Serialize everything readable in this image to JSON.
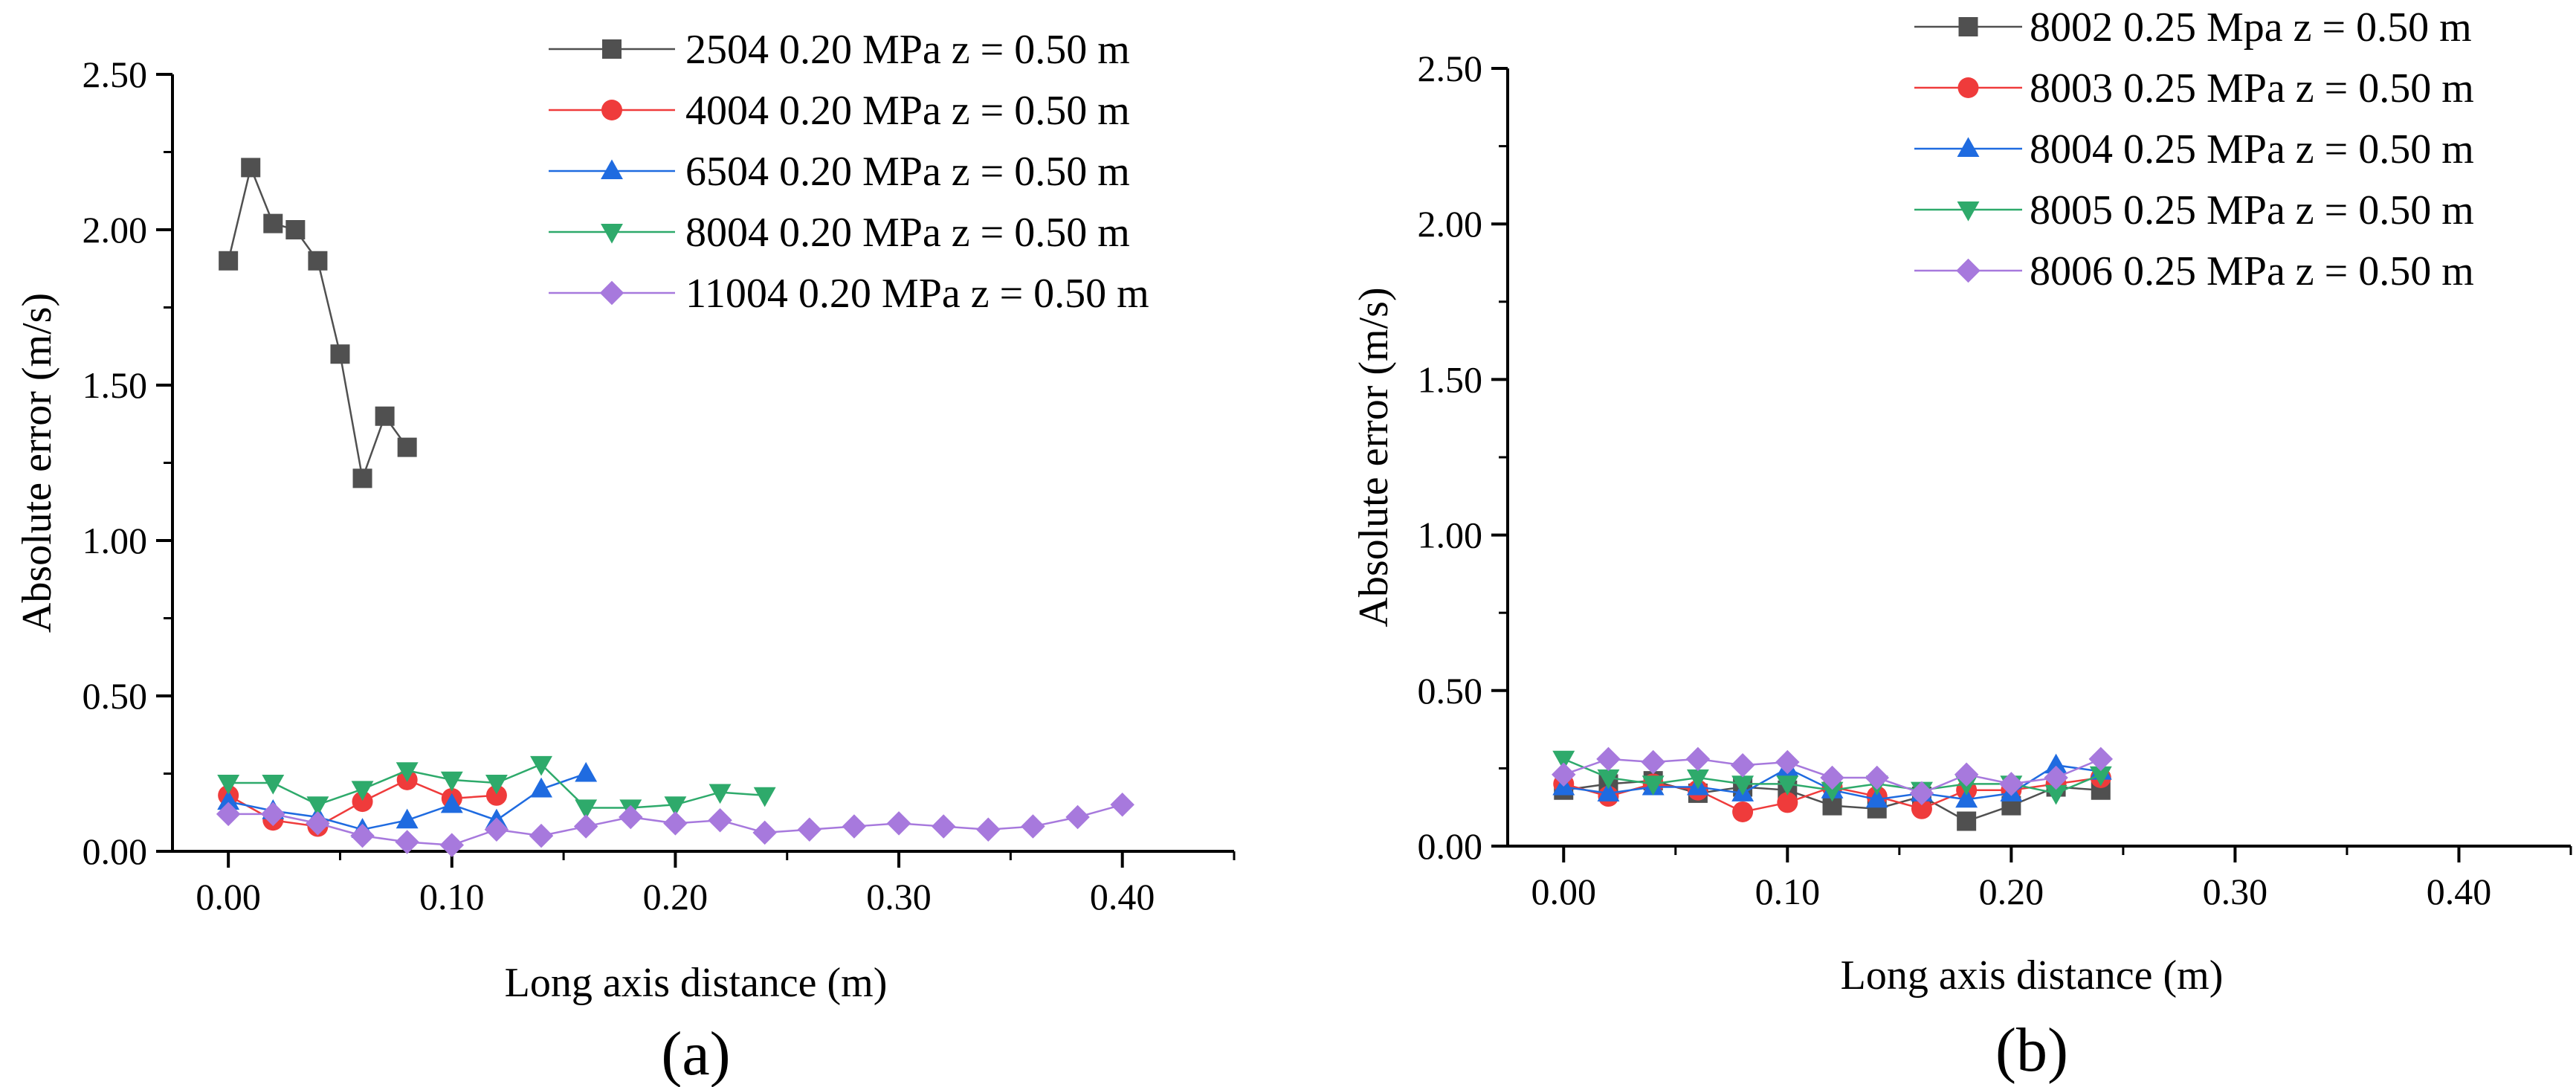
{
  "chart_data": [
    {
      "type": "line",
      "panel_label": "(a)",
      "xlabel": "Long axis distance (m)",
      "ylabel": "Absolute error (m/s)",
      "xlim": [
        -0.025,
        0.45
      ],
      "ylim": [
        0,
        2.5
      ],
      "xticks": [
        "0.00",
        "0.10",
        "0.20",
        "0.30",
        "0.40"
      ],
      "yticks": [
        "0.00",
        "0.50",
        "1.00",
        "1.50",
        "2.00",
        "2.50"
      ],
      "legend_position": "top-right",
      "series": [
        {
          "name": "2504 0.20 MPa z = 0.50 m",
          "color": "#505050",
          "marker": "square",
          "x": [
            0.0,
            0.01,
            0.02,
            0.03,
            0.04,
            0.05,
            0.06,
            0.07,
            0.08
          ],
          "y": [
            1.9,
            2.2,
            2.02,
            2.0,
            1.9,
            1.6,
            1.2,
            1.4,
            1.3
          ]
        },
        {
          "name": "4004 0.20 MPa z = 0.50 m",
          "color": "#ef3b3b",
          "marker": "circle",
          "x": [
            0.0,
            0.02,
            0.04,
            0.06,
            0.08,
            0.1,
            0.12
          ],
          "y": [
            0.18,
            0.1,
            0.08,
            0.16,
            0.23,
            0.17,
            0.18
          ]
        },
        {
          "name": "6504 0.20 MPa z = 0.50 m",
          "color": "#1f6be0",
          "marker": "triangle-up",
          "x": [
            0.0,
            0.02,
            0.04,
            0.06,
            0.08,
            0.1,
            0.12,
            0.14,
            0.16
          ],
          "y": [
            0.16,
            0.13,
            0.11,
            0.07,
            0.1,
            0.15,
            0.1,
            0.2,
            0.25
          ]
        },
        {
          "name": "8004 0.20 MPa z = 0.50 m",
          "color": "#2eaa6b",
          "marker": "triangle-down",
          "x": [
            0.0,
            0.02,
            0.04,
            0.06,
            0.08,
            0.1,
            0.12,
            0.14,
            0.16,
            0.18,
            0.2,
            0.22,
            0.24
          ],
          "y": [
            0.22,
            0.22,
            0.15,
            0.2,
            0.26,
            0.23,
            0.22,
            0.28,
            0.14,
            0.14,
            0.15,
            0.19,
            0.18
          ]
        },
        {
          "name": "11004 0.20 MPa z = 0.50 m",
          "color": "#a779dd",
          "marker": "diamond",
          "x": [
            0.0,
            0.02,
            0.04,
            0.06,
            0.08,
            0.1,
            0.12,
            0.14,
            0.16,
            0.18,
            0.2,
            0.22,
            0.24,
            0.26,
            0.28,
            0.3,
            0.32,
            0.34,
            0.36,
            0.38,
            0.4
          ],
          "y": [
            0.12,
            0.12,
            0.09,
            0.05,
            0.03,
            0.02,
            0.07,
            0.05,
            0.08,
            0.11,
            0.09,
            0.1,
            0.06,
            0.07,
            0.08,
            0.09,
            0.08,
            0.07,
            0.08,
            0.11,
            0.15
          ]
        }
      ]
    },
    {
      "type": "line",
      "panel_label": "(b)",
      "xlabel": "Long axis distance (m)",
      "ylabel": "Absolute error (m/s)",
      "xlim": [
        -0.025,
        0.45
      ],
      "ylim": [
        0,
        2.5
      ],
      "xticks": [
        "0.00",
        "0.10",
        "0.20",
        "0.30",
        "0.40"
      ],
      "yticks": [
        "0.00",
        "0.50",
        "1.00",
        "1.50",
        "2.00",
        "2.50"
      ],
      "legend_position": "top-right",
      "series": [
        {
          "name": "8002 0.25 Mpa z = 0.50 m",
          "color": "#505050",
          "marker": "square",
          "x": [
            0.0,
            0.02,
            0.04,
            0.06,
            0.08,
            0.1,
            0.12,
            0.14,
            0.16,
            0.18,
            0.2,
            0.22,
            0.24
          ],
          "y": [
            0.18,
            0.2,
            0.21,
            0.17,
            0.19,
            0.18,
            0.13,
            0.12,
            0.16,
            0.08,
            0.13,
            0.19,
            0.18
          ]
        },
        {
          "name": "8003 0.25 MPa z = 0.50 m",
          "color": "#ef3b3b",
          "marker": "circle",
          "x": [
            0.0,
            0.02,
            0.04,
            0.06,
            0.08,
            0.1,
            0.12,
            0.14,
            0.16,
            0.18,
            0.2,
            0.22,
            0.24
          ],
          "y": [
            0.2,
            0.16,
            0.2,
            0.18,
            0.11,
            0.14,
            0.19,
            0.16,
            0.12,
            0.18,
            0.18,
            0.2,
            0.22
          ]
        },
        {
          "name": "8004 0.25 MPa z = 0.50 m",
          "color": "#1f6be0",
          "marker": "triangle-up",
          "x": [
            0.0,
            0.02,
            0.04,
            0.06,
            0.08,
            0.1,
            0.12,
            0.14,
            0.16,
            0.18,
            0.2,
            0.22,
            0.24
          ],
          "y": [
            0.19,
            0.17,
            0.19,
            0.19,
            0.17,
            0.25,
            0.18,
            0.15,
            0.17,
            0.15,
            0.17,
            0.26,
            0.24
          ]
        },
        {
          "name": "8005 0.25 MPa z = 0.50 m",
          "color": "#2eaa6b",
          "marker": "triangle-down",
          "x": [
            0.0,
            0.02,
            0.04,
            0.06,
            0.08,
            0.1,
            0.12,
            0.14,
            0.16,
            0.18,
            0.2,
            0.22,
            0.24
          ],
          "y": [
            0.28,
            0.22,
            0.2,
            0.22,
            0.2,
            0.2,
            0.18,
            0.2,
            0.18,
            0.2,
            0.2,
            0.17,
            0.23
          ]
        },
        {
          "name": "8006 0.25 MPa z = 0.50 m",
          "color": "#a779dd",
          "marker": "diamond",
          "x": [
            0.0,
            0.02,
            0.04,
            0.06,
            0.08,
            0.1,
            0.12,
            0.14,
            0.16,
            0.18,
            0.2,
            0.22,
            0.24
          ],
          "y": [
            0.23,
            0.28,
            0.27,
            0.28,
            0.26,
            0.27,
            0.22,
            0.22,
            0.17,
            0.23,
            0.2,
            0.22,
            0.28
          ]
        }
      ]
    }
  ]
}
